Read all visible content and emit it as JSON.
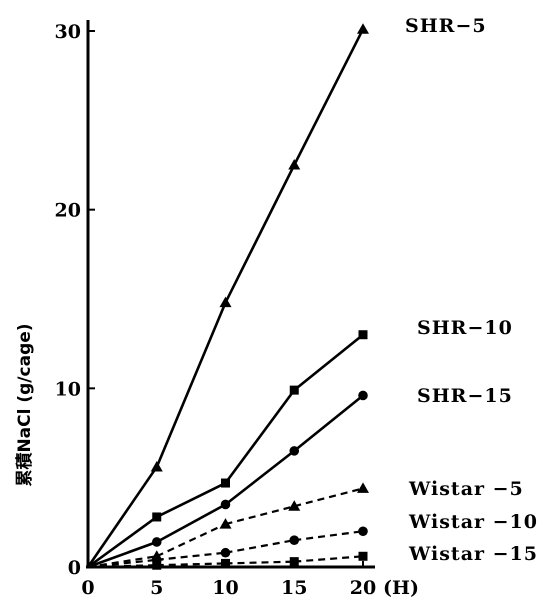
{
  "chart_data": {
    "type": "line",
    "ylabel": "累積NaCl (g/cage)",
    "x_unit": "(H)",
    "xlim": [
      0,
      20
    ],
    "ylim": [
      0,
      30
    ],
    "x_ticks": [
      "0",
      "5",
      "10",
      "15",
      "20"
    ],
    "y_ticks": [
      "0",
      "10",
      "20",
      "30"
    ],
    "x": [
      0,
      5,
      10,
      15,
      20
    ],
    "series": [
      {
        "name": "SHR−5",
        "marker": "triangle",
        "line": "solid",
        "values": [
          0,
          5.6,
          14.8,
          22.5,
          30.1
        ]
      },
      {
        "name": "SHR−10",
        "marker": "square",
        "line": "solid",
        "values": [
          0,
          2.8,
          4.7,
          9.9,
          13.0
        ]
      },
      {
        "name": "SHR−15",
        "marker": "circle",
        "line": "solid",
        "values": [
          0,
          1.4,
          3.5,
          6.5,
          9.6
        ]
      },
      {
        "name": "Wistar −5",
        "marker": "triangle",
        "line": "dashed",
        "values": [
          0,
          0.6,
          2.4,
          3.4,
          4.4
        ]
      },
      {
        "name": "Wistar −10",
        "marker": "circle",
        "line": "dashed",
        "values": [
          0,
          0.4,
          0.8,
          1.5,
          2.0
        ]
      },
      {
        "name": "Wistar −15",
        "marker": "square",
        "line": "dashed",
        "values": [
          0,
          0.1,
          0.2,
          0.3,
          0.6
        ]
      }
    ]
  }
}
